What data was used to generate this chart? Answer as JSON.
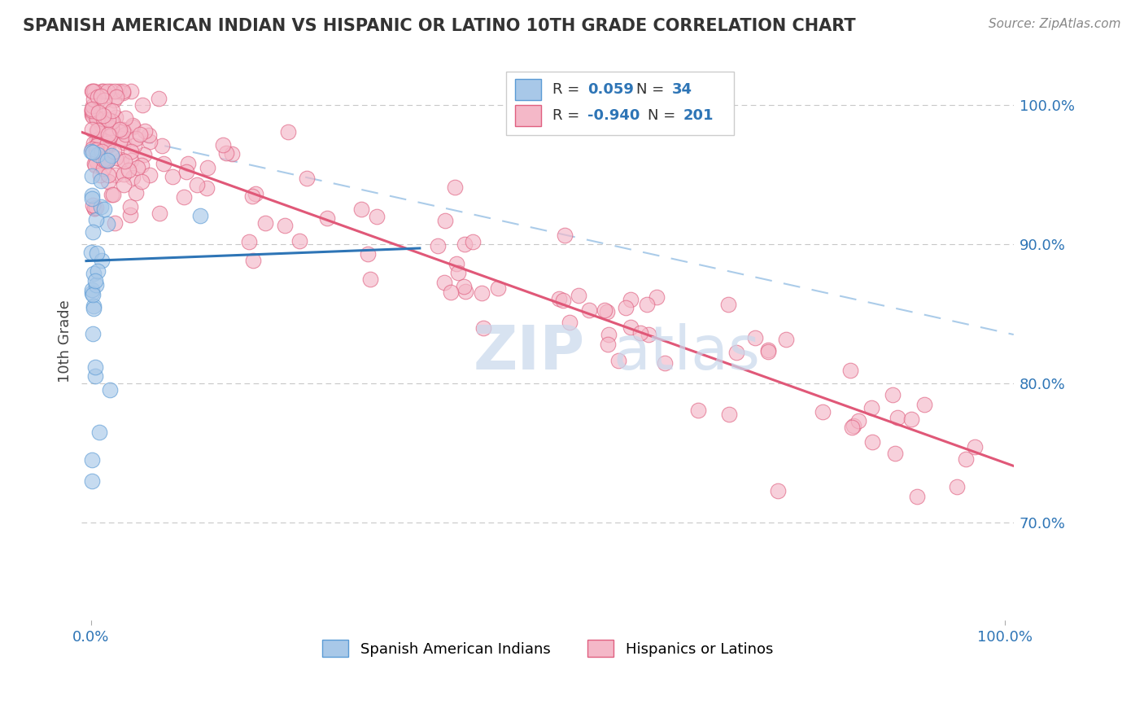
{
  "title": "SPANISH AMERICAN INDIAN VS HISPANIC OR LATINO 10TH GRADE CORRELATION CHART",
  "source": "Source: ZipAtlas.com",
  "ylabel": "10th Grade",
  "ylim": [
    0.63,
    1.03
  ],
  "xlim": [
    -0.01,
    1.01
  ],
  "yticks": [
    0.7,
    0.8,
    0.9,
    1.0
  ],
  "ytick_labels": [
    "70.0%",
    "80.0%",
    "90.0%",
    "100.0%"
  ],
  "xtick_labels": [
    "0.0%",
    "100.0%"
  ],
  "legend_r_blue": "0.059",
  "legend_n_blue": "34",
  "legend_r_pink": "-0.940",
  "legend_n_pink": "201",
  "legend_label_blue": "Spanish American Indians",
  "legend_label_pink": "Hispanics or Latinos",
  "color_blue_fill": "#A8C8E8",
  "color_blue_edge": "#5B9BD5",
  "color_pink_fill": "#F4B8C8",
  "color_pink_edge": "#E06080",
  "color_blue_line": "#2E75B6",
  "color_pink_line": "#E05878",
  "color_dashed": "#9DC3E6",
  "color_grid": "#C8C8C8",
  "color_axis_text": "#2E75B6",
  "color_title": "#333333",
  "color_source": "#888888",
  "color_watermark": "#C8D8EC",
  "color_ylabel": "#444444",
  "watermark_zip": "ZIP",
  "watermark_atlas": "atlas",
  "background": "#FFFFFF",
  "seed": 42,
  "blue_n": 34,
  "pink_n": 201,
  "pink_slope": -0.235,
  "pink_intercept": 0.978,
  "blue_slope": 0.025,
  "blue_intercept_at_zero": 0.888,
  "blue_line_x_end": 0.36
}
